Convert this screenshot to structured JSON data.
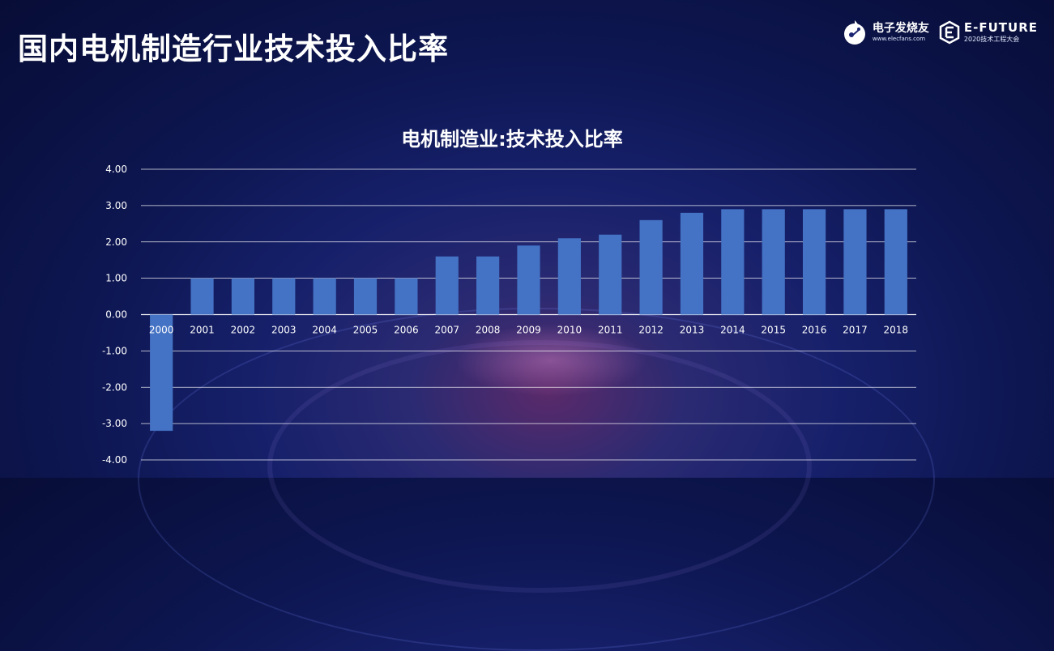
{
  "slide": {
    "title": "国内电机制造行业技术投入比率"
  },
  "logos": {
    "elecfans_name": "电子发烧友",
    "elecfans_url": "www.elecfans.com",
    "efuture_name": "E-FUTURE",
    "efuture_sub": "2020技术工程大会"
  },
  "colors": {
    "bar": "#4472c4",
    "gridline": "#ffffff",
    "text": "#ffffff"
  },
  "chart_data": {
    "type": "bar",
    "title": "电机制造业:技术投入比率",
    "xlabel": "",
    "ylabel": "",
    "ylim": [
      -4,
      4
    ],
    "yticks": [
      "4.00",
      "3.00",
      "2.00",
      "1.00",
      "0.00",
      "-1.00",
      "-2.00",
      "-3.00",
      "-4.00"
    ],
    "grid": true,
    "categories": [
      "2000",
      "2001",
      "2002",
      "2003",
      "2004",
      "2005",
      "2006",
      "2007",
      "2008",
      "2009",
      "2010",
      "2011",
      "2012",
      "2013",
      "2014",
      "2015",
      "2016",
      "2017",
      "2018"
    ],
    "values": [
      -3.2,
      1.0,
      1.0,
      1.0,
      1.0,
      1.0,
      1.0,
      1.6,
      1.6,
      1.9,
      2.1,
      2.2,
      2.6,
      2.8,
      2.9,
      2.9,
      2.9,
      2.9,
      2.9
    ]
  }
}
